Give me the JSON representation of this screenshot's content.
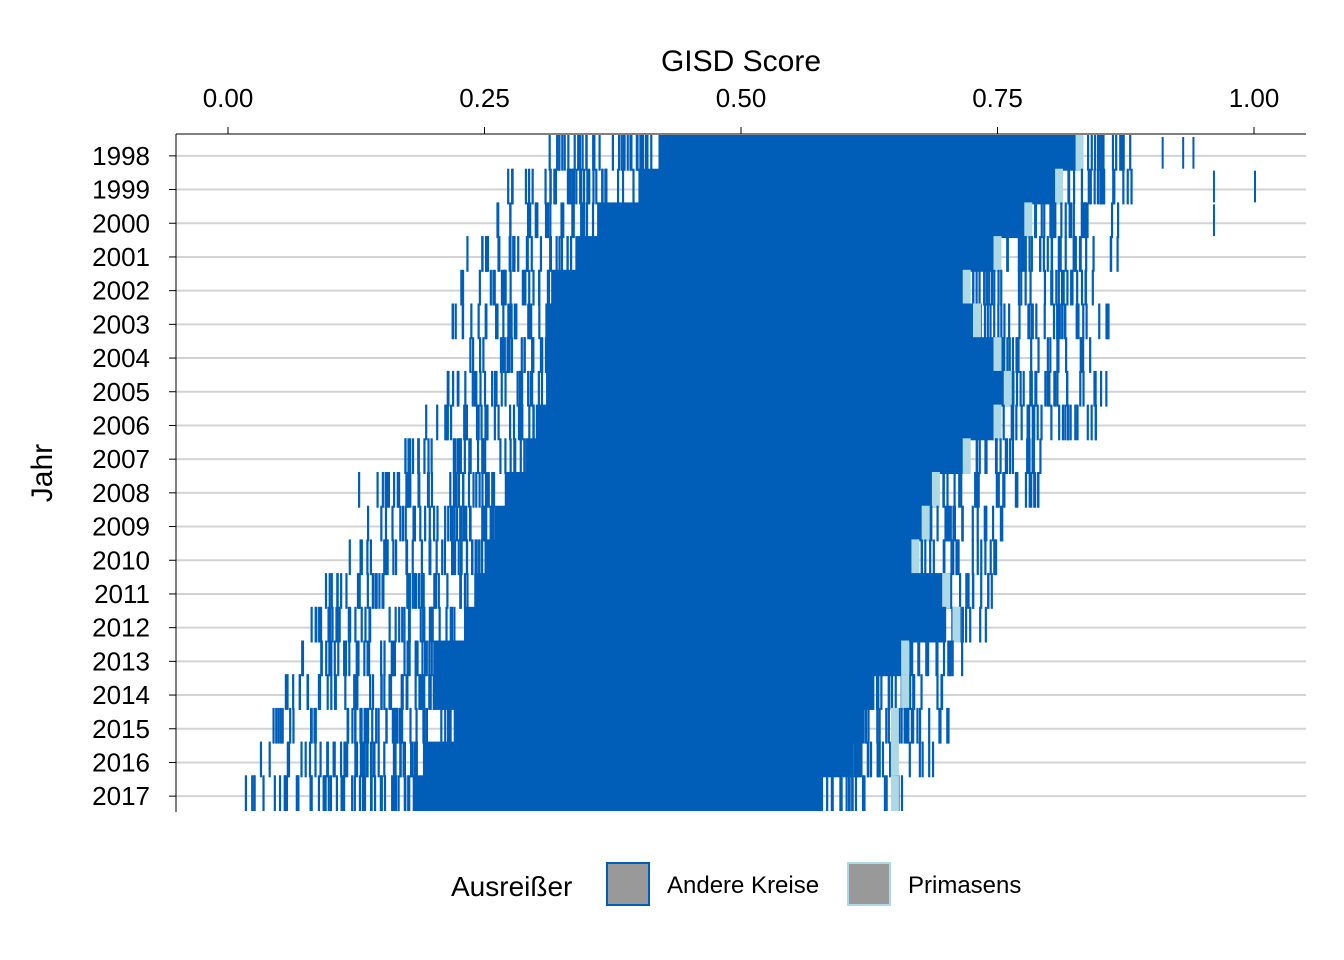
{
  "chart_data": {
    "type": "strip",
    "title": "",
    "xlabel": "GISD Score",
    "ylabel": "Jahr",
    "x_position": "top",
    "xlim": [
      -0.05,
      1.05
    ],
    "x_ticks": [
      0.0,
      0.25,
      0.5,
      0.75,
      1.0
    ],
    "x_tick_labels": [
      "0.00",
      "0.25",
      "0.50",
      "0.75",
      "1.00"
    ],
    "years": [
      "1998",
      "1999",
      "2000",
      "2001",
      "2002",
      "2003",
      "2004",
      "2005",
      "2006",
      "2007",
      "2008",
      "2009",
      "2010",
      "2011",
      "2012",
      "2013",
      "2014",
      "2015",
      "2016",
      "2017"
    ],
    "grid": "horizontal",
    "legend": {
      "title": "Ausreißer",
      "position": "bottom",
      "items": [
        {
          "label": "Andere Kreise",
          "fill": "#999999",
          "border": "#005EB8"
        },
        {
          "label": "Primasens",
          "fill": "#999999",
          "border": "#ADD8E6"
        }
      ]
    },
    "series": [
      {
        "name": "Andere Kreise",
        "color": "#005EB8",
        "dense_ranges": [
          [
            0.42,
            0.83
          ],
          [
            0.4,
            0.81
          ],
          [
            0.36,
            0.78
          ],
          [
            0.34,
            0.75
          ],
          [
            0.32,
            0.72
          ],
          [
            0.31,
            0.73
          ],
          [
            0.31,
            0.75
          ],
          [
            0.31,
            0.76
          ],
          [
            0.3,
            0.75
          ],
          [
            0.29,
            0.72
          ],
          [
            0.27,
            0.69
          ],
          [
            0.26,
            0.68
          ],
          [
            0.25,
            0.67
          ],
          [
            0.24,
            0.7
          ],
          [
            0.23,
            0.7
          ],
          [
            0.2,
            0.66
          ],
          [
            0.2,
            0.63
          ],
          [
            0.22,
            0.62
          ],
          [
            0.19,
            0.61
          ],
          [
            0.18,
            0.58
          ]
        ],
        "ranges": [
          [
            0.29,
            0.88
          ],
          [
            0.27,
            0.88
          ],
          [
            0.26,
            0.87
          ],
          [
            0.23,
            0.87
          ],
          [
            0.22,
            0.85
          ],
          [
            0.21,
            0.86
          ],
          [
            0.23,
            0.85
          ],
          [
            0.21,
            0.86
          ],
          [
            0.19,
            0.85
          ],
          [
            0.17,
            0.8
          ],
          [
            0.12,
            0.79
          ],
          [
            0.12,
            0.76
          ],
          [
            0.11,
            0.76
          ],
          [
            0.09,
            0.75
          ],
          [
            0.08,
            0.74
          ],
          [
            0.06,
            0.72
          ],
          [
            0.05,
            0.7
          ],
          [
            0.03,
            0.71
          ],
          [
            0.03,
            0.69
          ],
          [
            0.0,
            0.66
          ]
        ],
        "outliers": [
          [
            0.91,
            0.93,
            0.94
          ],
          [
            0.96,
            1.0
          ],
          [
            0.96
          ],
          [],
          [],
          [],
          [],
          [],
          [],
          [],
          [],
          [],
          [],
          [],
          [],
          [],
          [],
          [],
          [],
          []
        ]
      },
      {
        "name": "Primasens",
        "color": "#ADD8E6",
        "values": [
          0.83,
          0.81,
          0.78,
          0.75,
          0.72,
          0.73,
          0.75,
          0.76,
          0.75,
          0.72,
          0.69,
          0.68,
          0.67,
          0.7,
          0.71,
          0.66,
          0.66,
          0.65,
          0.65,
          0.65
        ]
      }
    ]
  }
}
